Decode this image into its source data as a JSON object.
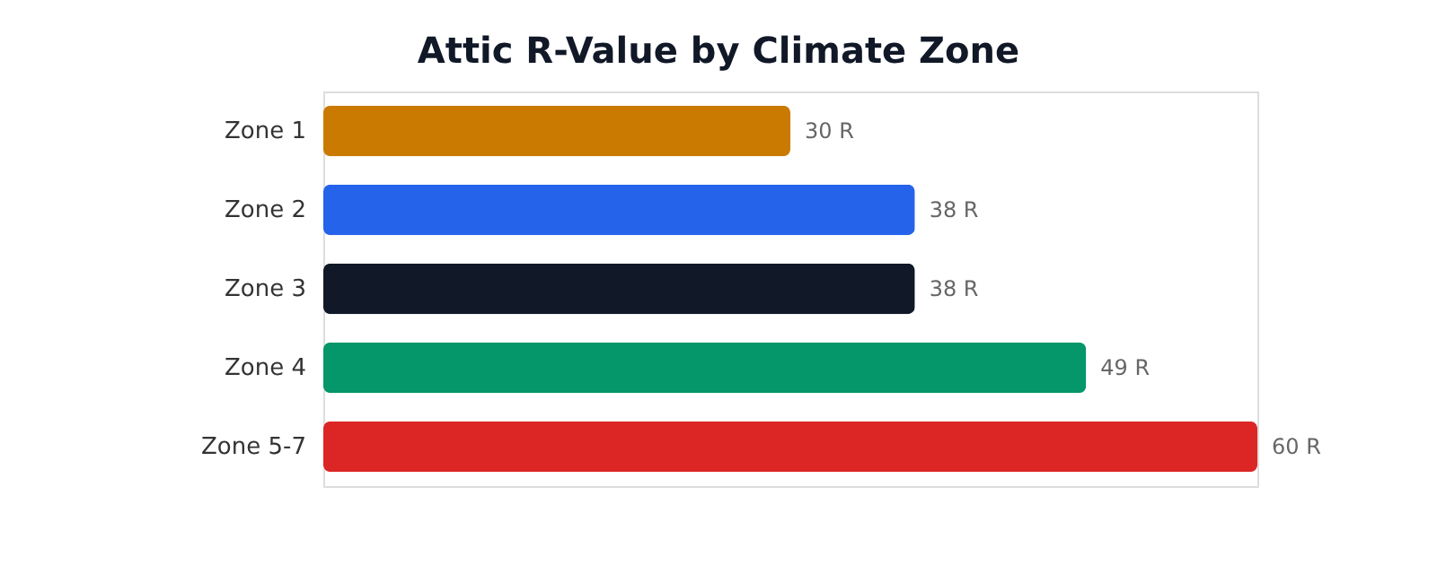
{
  "chart_data": {
    "type": "bar",
    "orientation": "horizontal",
    "title": "Attic R-Value by Climate Zone",
    "categories": [
      "Zone 1",
      "Zone 2",
      "Zone 3",
      "Zone 4",
      "Zone 5-7"
    ],
    "values": [
      30,
      38,
      38,
      49,
      60
    ],
    "colors": [
      "#ca7a00",
      "#2563eb",
      "#111827",
      "#059669",
      "#dc2626"
    ],
    "value_labels": [
      "30 R",
      "38 R",
      "38 R",
      "49 R",
      "60 R"
    ]
  }
}
